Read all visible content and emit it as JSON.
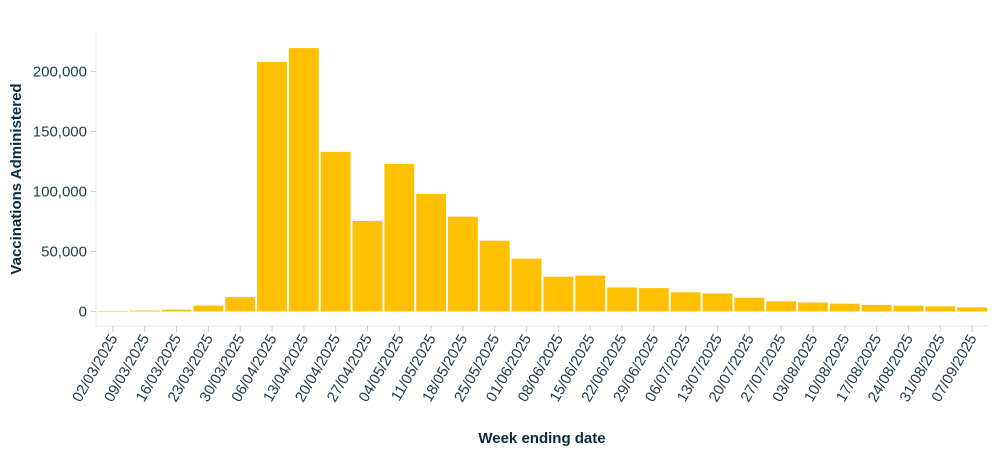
{
  "chart_data": {
    "type": "bar",
    "xlabel": "Week ending date",
    "ylabel": "Vaccinations Administered",
    "ylim": [
      0,
      230000
    ],
    "y_ticks": [
      {
        "value": 0,
        "label": "0"
      },
      {
        "value": 50000,
        "label": "50,000"
      },
      {
        "value": 100000,
        "label": "100,000"
      },
      {
        "value": 150000,
        "label": "150,000"
      },
      {
        "value": 200000,
        "label": "200,000"
      }
    ],
    "categories": [
      "02/03/2025",
      "09/03/2025",
      "16/03/2025",
      "23/03/2025",
      "30/03/2025",
      "06/04/2025",
      "13/04/2025",
      "20/04/2025",
      "27/04/2025",
      "04/05/2025",
      "11/05/2025",
      "18/05/2025",
      "25/05/2025",
      "01/06/2025",
      "08/06/2025",
      "15/06/2025",
      "22/06/2025",
      "29/06/2025",
      "06/07/2025",
      "13/07/2025",
      "20/07/2025",
      "27/07/2025",
      "03/08/2025",
      "10/08/2025",
      "17/08/2025",
      "24/08/2025",
      "31/08/2025",
      "07/09/2025"
    ],
    "values": [
      500,
      800,
      1500,
      5000,
      12000,
      208000,
      219500,
      133000,
      75500,
      123000,
      98000,
      79000,
      59000,
      44000,
      29000,
      30000,
      20000,
      19500,
      16000,
      15000,
      11500,
      8500,
      7500,
      6500,
      5500,
      4800,
      4300,
      3500
    ],
    "bar_color": "#ffc000",
    "axis_color": "#e8e8e8",
    "grid": false,
    "legend": "none"
  }
}
